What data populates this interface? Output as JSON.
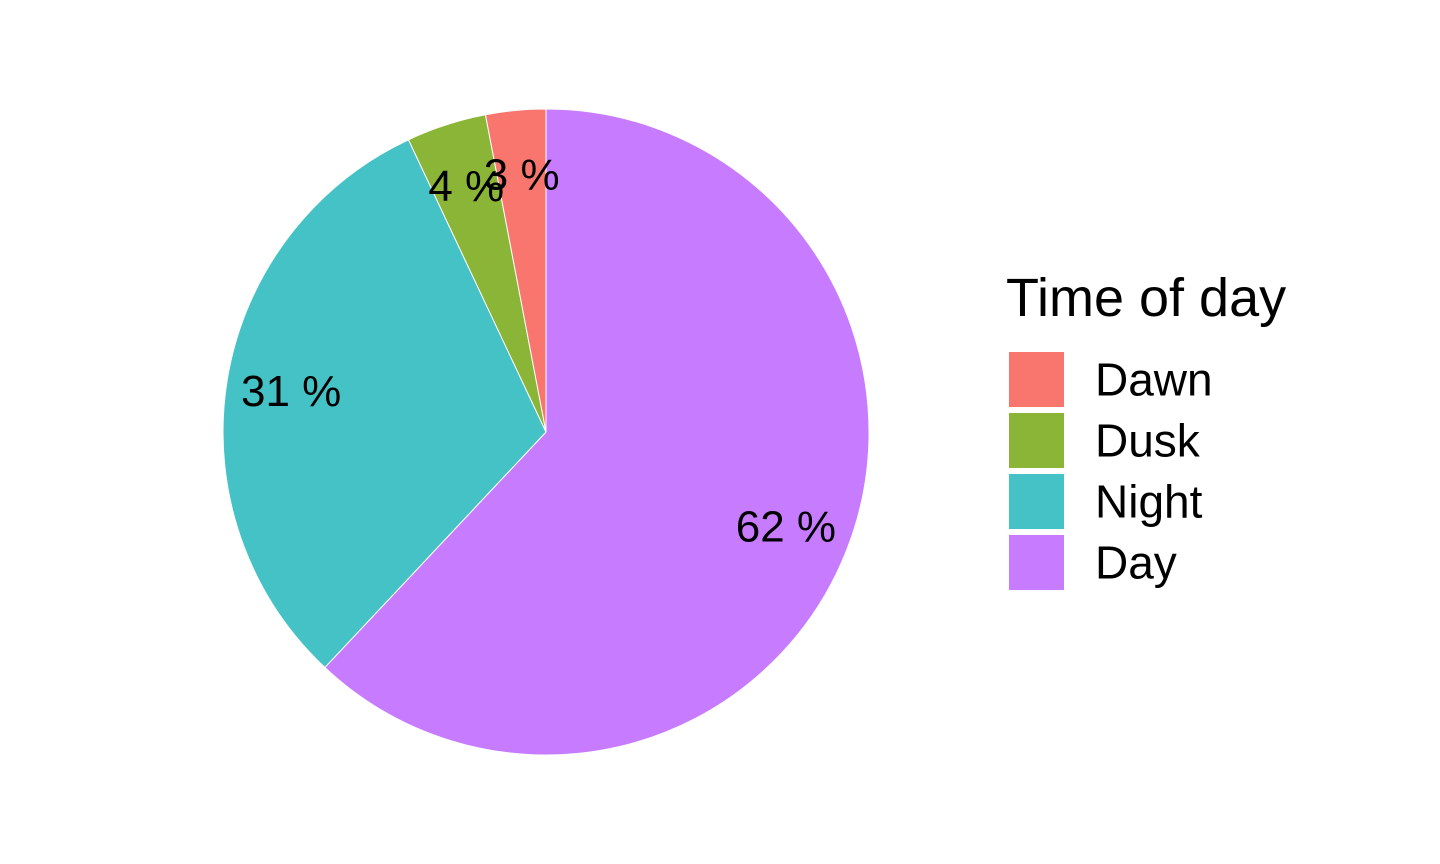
{
  "chart_data": {
    "type": "pie",
    "start_angle": "top",
    "direction": "clockwise",
    "legend": {
      "title": "Time of day",
      "position": "right"
    },
    "slices": [
      {
        "name": "Dawn",
        "value": 3,
        "label": "3 %",
        "color": "#F8766D"
      },
      {
        "name": "Dusk",
        "value": 4,
        "label": "4 %",
        "color": "#8AB536"
      },
      {
        "name": "Night",
        "value": 31,
        "label": "31 %",
        "color": "#45C2C6"
      },
      {
        "name": "Day",
        "value": 62,
        "label": "62 %",
        "color": "#C77CFF"
      }
    ],
    "legend_order": [
      "Dawn",
      "Dusk",
      "Night",
      "Day"
    ]
  }
}
